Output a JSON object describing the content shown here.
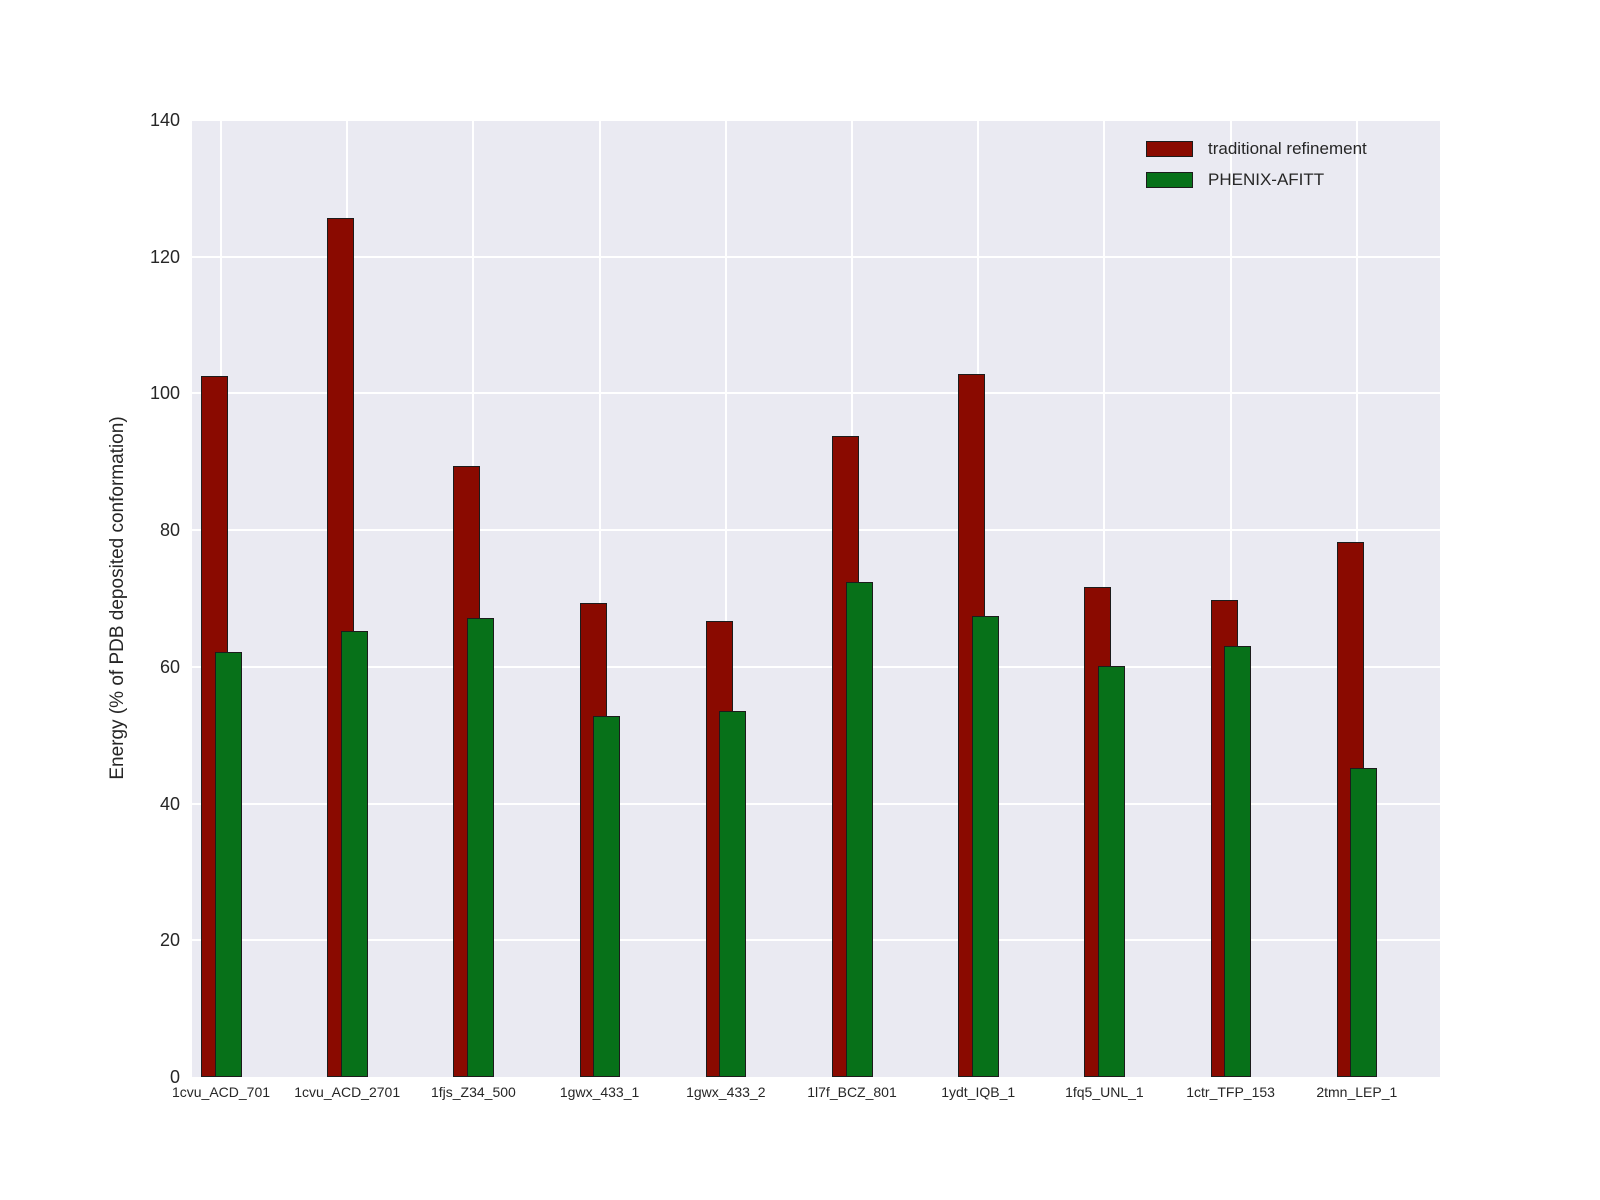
{
  "chart_data": {
    "type": "bar",
    "title": "",
    "xlabel": "",
    "ylabel": "Energy (% of PDB deposited conformation)",
    "ylim": [
      0,
      140
    ],
    "yticks": [
      0,
      20,
      40,
      60,
      80,
      100,
      120,
      140
    ],
    "grid": true,
    "legend_position": "upper right",
    "categories": [
      "1cvu_ACD_701",
      "1cvu_ACD_2701",
      "1fjs_Z34_500",
      "1gwx_433_1",
      "1gwx_433_2",
      "1l7f_BCZ_801",
      "1ydt_IQB_1",
      "1fq5_UNL_1",
      "1ctr_TFP_153",
      "2tmn_LEP_1"
    ],
    "series": [
      {
        "name": "traditional refinement",
        "color": "#8a0a00",
        "values": [
          102.5,
          125.7,
          89.4,
          69.3,
          66.7,
          93.8,
          102.8,
          71.7,
          69.8,
          78.3
        ]
      },
      {
        "name": "PHENIX-AFITT",
        "color": "#077119",
        "values": [
          62.2,
          65.2,
          67.2,
          52.8,
          53.5,
          72.4,
          67.4,
          60.2,
          63.0,
          45.2
        ]
      }
    ],
    "colors": {
      "plot_background": "#eaeaf2",
      "figure_background": "#ffffff",
      "grid_color": "#ffffff",
      "bar_edge_color": "#1c1c1c",
      "text_color": "#262626"
    }
  }
}
